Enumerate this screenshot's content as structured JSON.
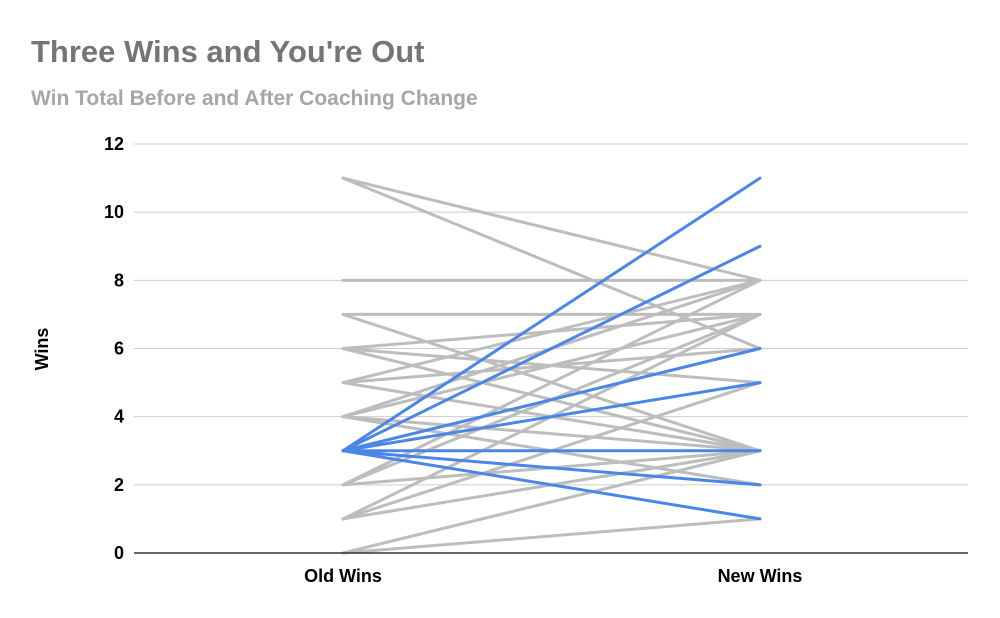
{
  "chart_data": {
    "type": "line",
    "title": "Three Wins and You're Out",
    "subtitle": "Win Total Before and After Coaching Change",
    "xlabel": "",
    "ylabel": "Wins",
    "categories": [
      "Old Wins",
      "New Wins"
    ],
    "ylim": [
      0,
      12
    ],
    "yticks": [
      0,
      2,
      4,
      6,
      8,
      10,
      12
    ],
    "grid": true,
    "legend": "none",
    "colors": {
      "title": "#757575",
      "subtitle": "#a6a6a6",
      "highlight": "#4a86e8",
      "other": "#bdbdbd",
      "grid": "#cccccc",
      "axis": "#333333"
    },
    "series": [
      {
        "values": [
          11,
          8
        ],
        "highlight": false
      },
      {
        "values": [
          11,
          6
        ],
        "highlight": false
      },
      {
        "values": [
          8,
          8
        ],
        "highlight": false
      },
      {
        "values": [
          7,
          7
        ],
        "highlight": false
      },
      {
        "values": [
          7,
          3
        ],
        "highlight": false
      },
      {
        "values": [
          6,
          7
        ],
        "highlight": false
      },
      {
        "values": [
          6,
          5
        ],
        "highlight": false
      },
      {
        "values": [
          6,
          3
        ],
        "highlight": false
      },
      {
        "values": [
          5,
          8
        ],
        "highlight": false
      },
      {
        "values": [
          5,
          6
        ],
        "highlight": false
      },
      {
        "values": [
          5,
          3
        ],
        "highlight": false
      },
      {
        "values": [
          4,
          8
        ],
        "highlight": false
      },
      {
        "values": [
          4,
          7
        ],
        "highlight": false
      },
      {
        "values": [
          4,
          3
        ],
        "highlight": false
      },
      {
        "values": [
          4,
          2
        ],
        "highlight": false
      },
      {
        "values": [
          2,
          8
        ],
        "highlight": false
      },
      {
        "values": [
          2,
          7
        ],
        "highlight": false
      },
      {
        "values": [
          2,
          3
        ],
        "highlight": false
      },
      {
        "values": [
          1,
          7
        ],
        "highlight": false
      },
      {
        "values": [
          1,
          5
        ],
        "highlight": false
      },
      {
        "values": [
          1,
          3
        ],
        "highlight": false
      },
      {
        "values": [
          0,
          3
        ],
        "highlight": false
      },
      {
        "values": [
          0,
          1
        ],
        "highlight": false
      },
      {
        "values": [
          3,
          11
        ],
        "highlight": true
      },
      {
        "values": [
          3,
          9
        ],
        "highlight": true
      },
      {
        "values": [
          3,
          6
        ],
        "highlight": true
      },
      {
        "values": [
          3,
          5
        ],
        "highlight": true
      },
      {
        "values": [
          3,
          3
        ],
        "highlight": true
      },
      {
        "values": [
          3,
          2
        ],
        "highlight": true
      },
      {
        "values": [
          3,
          1
        ],
        "highlight": true
      }
    ]
  }
}
